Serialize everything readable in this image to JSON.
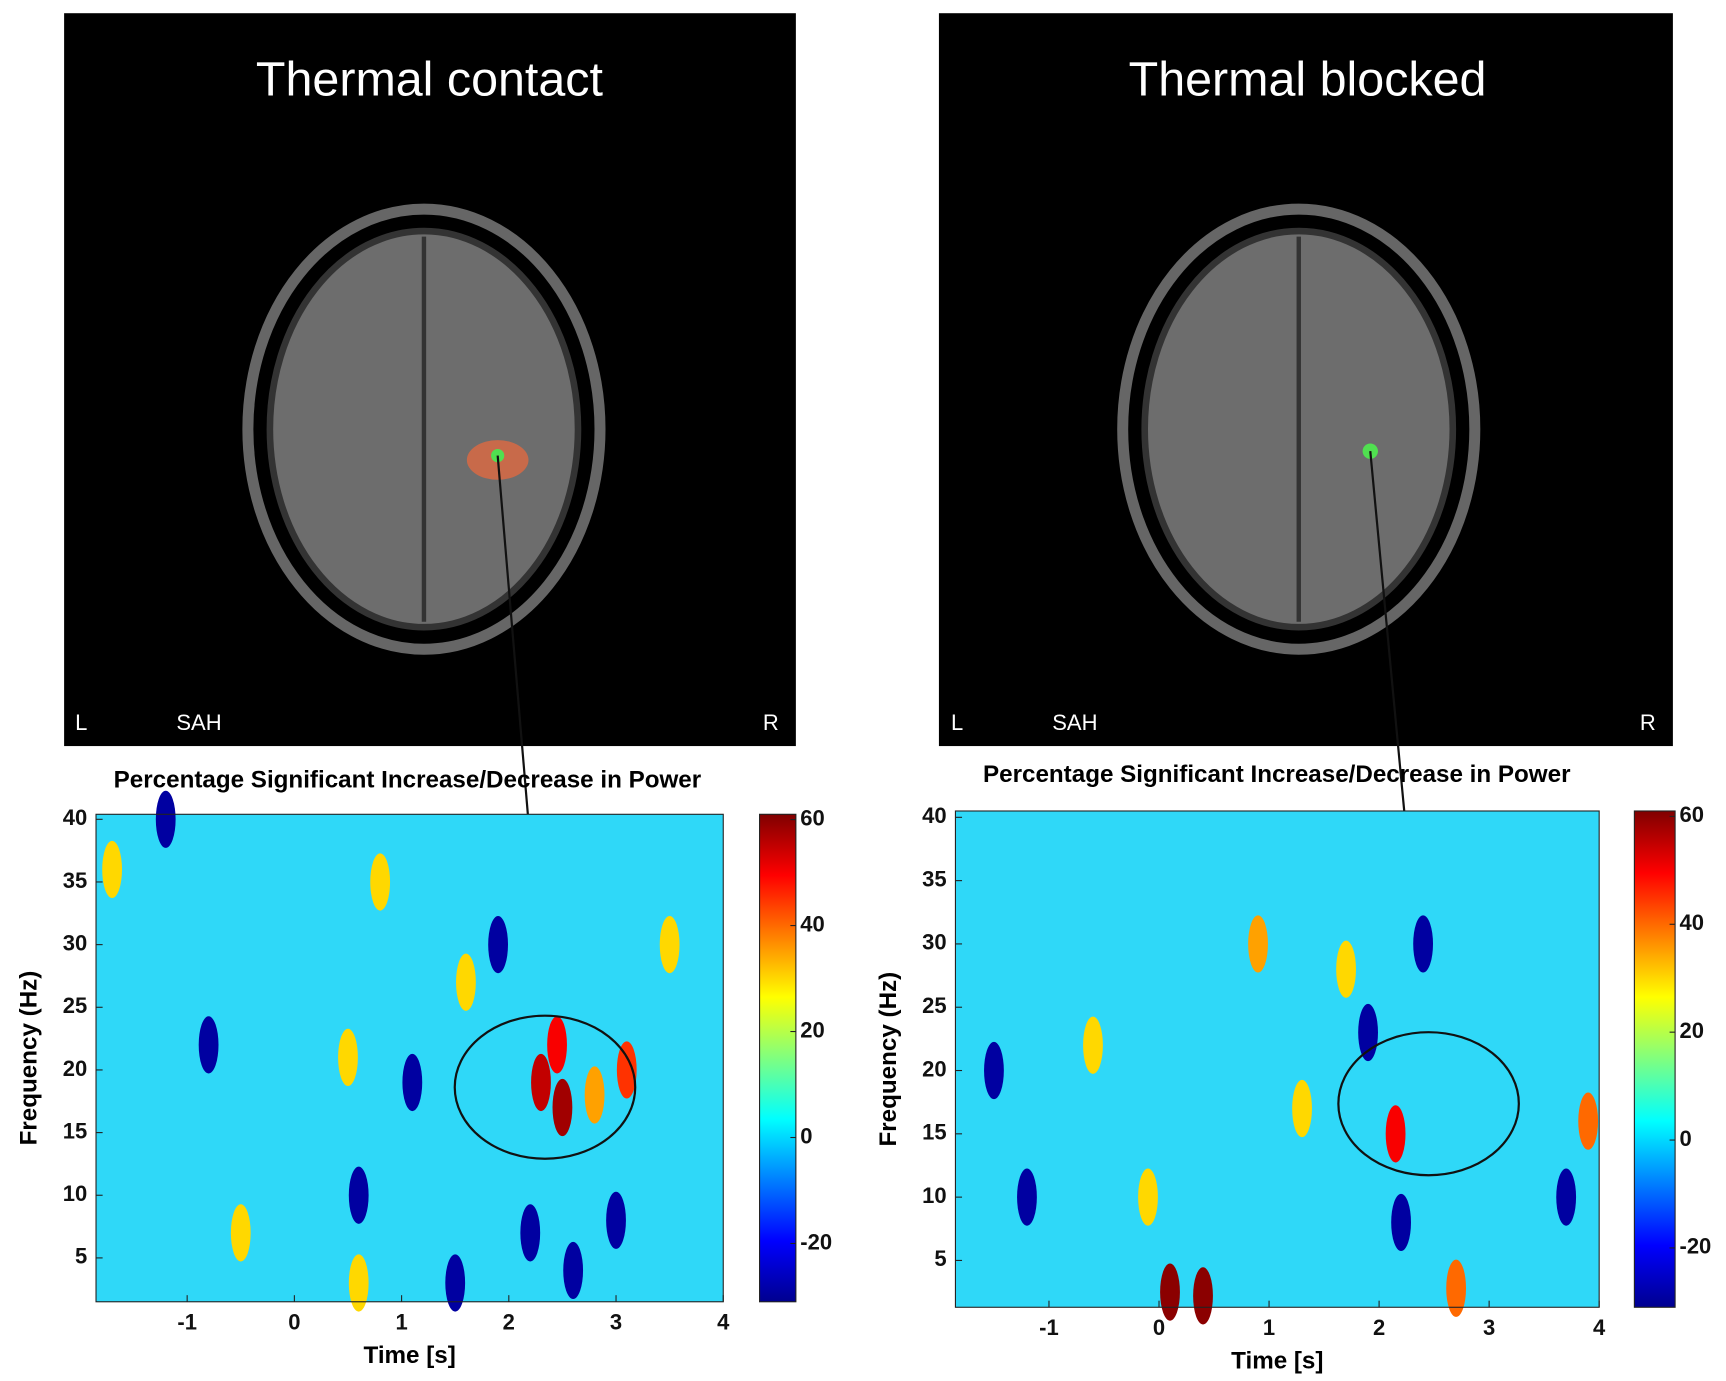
{
  "images": [
    {
      "title": "Thermal contact",
      "left": "L",
      "method": "SAH",
      "right": "R"
    },
    {
      "title": "Thermal blocked",
      "left": "L",
      "method": "SAH",
      "right": "R"
    }
  ],
  "chart_data": [
    {
      "type": "heatmap",
      "title": "Percentage Significant Increase/Decrease in Power",
      "x_label": "Time [s]",
      "y_label": "Frequency (Hz)",
      "xlim": [
        -1.85,
        4
      ],
      "xticks": [
        -1,
        0,
        1,
        2,
        3,
        4
      ],
      "ylim": [
        1.5,
        40.4
      ],
      "yticks": [
        5,
        10,
        15,
        20,
        25,
        30,
        35,
        40
      ],
      "clim": [
        -31,
        61
      ],
      "cticks": [
        -20,
        0,
        20,
        40,
        60
      ],
      "x": [
        2.3,
        2.5,
        2.45,
        3.1,
        2.8,
        1.6,
        0.5,
        -1.7,
        -0.5,
        0.6,
        -1.2,
        -0.8,
        1.1,
        0.6,
        2.2,
        3.0,
        1.9,
        0.8,
        3.5,
        1.5,
        2.6
      ],
      "y": [
        19,
        17,
        22,
        20,
        18,
        27,
        21,
        36,
        7,
        3,
        40,
        22,
        19,
        10,
        7,
        8,
        30,
        35,
        30,
        3,
        4
      ],
      "values": [
        55,
        58,
        50,
        45,
        35,
        30,
        30,
        30,
        30,
        30,
        -28,
        -28,
        -28,
        -28,
        -28,
        -28,
        -28,
        30,
        30,
        -28,
        -28
      ]
    },
    {
      "type": "heatmap",
      "title": "Percentage Significant Increase/Decrease in Power",
      "x_label": "Time [s]",
      "y_label": "Frequency (Hz)",
      "xlim": [
        -1.85,
        4
      ],
      "xticks": [
        -1,
        0,
        1,
        2,
        3,
        4
      ],
      "ylim": [
        1.3,
        40.5
      ],
      "yticks": [
        5,
        10,
        15,
        20,
        25,
        30,
        35,
        40
      ],
      "clim": [
        -31,
        61
      ],
      "cticks": [
        -20,
        0,
        20,
        40,
        60
      ],
      "x": [
        2.15,
        -1.5,
        1.9,
        0.9,
        0.1,
        0.4,
        2.7,
        -0.6,
        1.3,
        3.9,
        3.7,
        -1.2,
        1.7,
        2.2,
        -0.1,
        2.4
      ],
      "y": [
        15,
        20,
        23,
        30,
        2.5,
        2.2,
        2.8,
        22,
        17,
        16,
        10,
        10,
        28,
        8,
        10,
        30
      ],
      "values": [
        50,
        -28,
        -28,
        35,
        60,
        60,
        40,
        30,
        30,
        40,
        -28,
        -28,
        30,
        -28,
        30,
        -28
      ]
    }
  ]
}
